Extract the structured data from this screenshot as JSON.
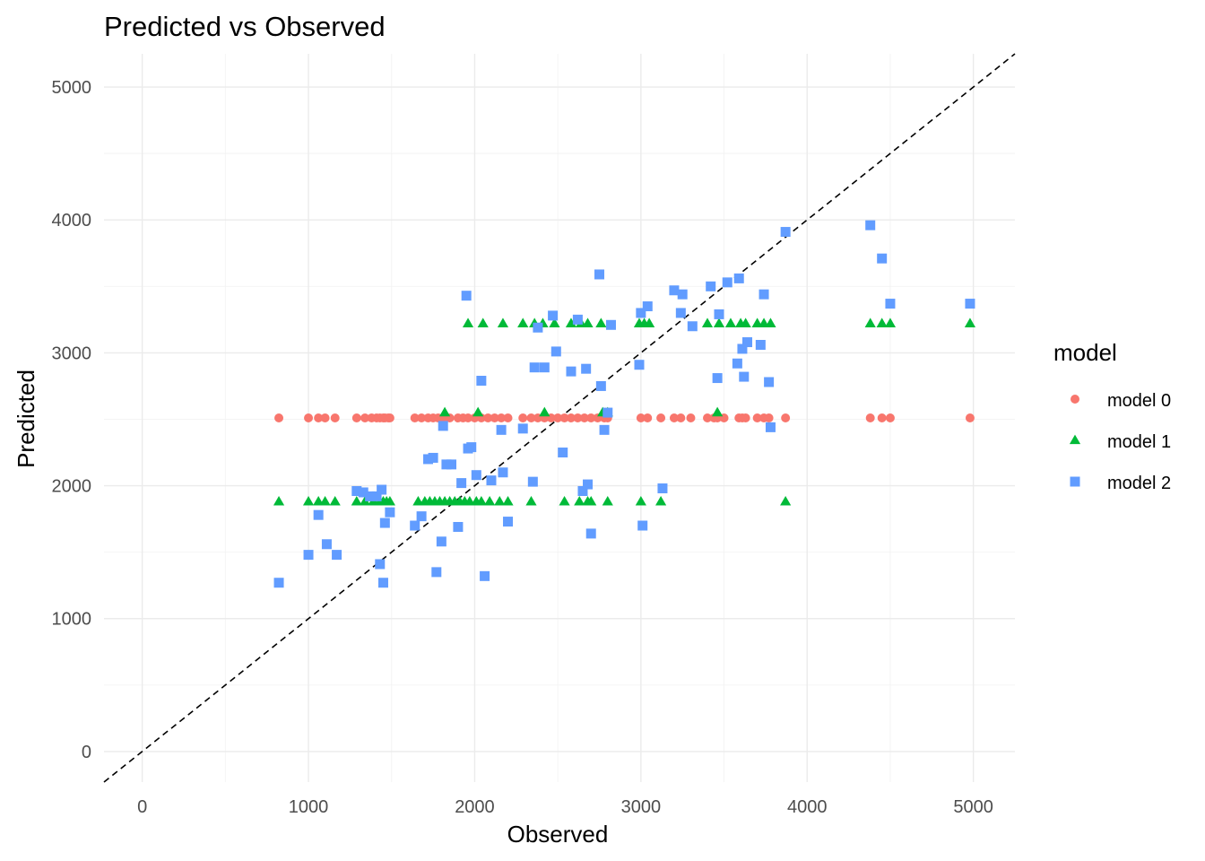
{
  "chart_data": {
    "type": "scatter",
    "title": "Predicted vs Observed",
    "xlabel": "Observed",
    "ylabel": "Predicted",
    "xlim": [
      -230,
      5250
    ],
    "ylim": [
      -230,
      5250
    ],
    "xticks": [
      0,
      1000,
      2000,
      3000,
      4000,
      5000
    ],
    "yticks": [
      0,
      1000,
      2000,
      3000,
      4000,
      5000
    ],
    "grid": true,
    "reference_line": {
      "type": "identity",
      "style": "dashed",
      "color": "#000000"
    },
    "legend": {
      "title": "model",
      "position": "right"
    },
    "series": [
      {
        "name": "model 0",
        "shape": "circle",
        "color": "#F8766D",
        "x": [
          822,
          1000,
          1060,
          1100,
          1160,
          1290,
          1340,
          1380,
          1410,
          1430,
          1450,
          1460,
          1480,
          1490,
          1640,
          1680,
          1720,
          1750,
          1780,
          1810,
          1850,
          1900,
          1930,
          1960,
          2000,
          2040,
          2080,
          2120,
          2160,
          2200,
          2290,
          2340,
          2380,
          2420,
          2460,
          2500,
          2540,
          2580,
          2620,
          2660,
          2700,
          2740,
          2780,
          2800,
          3000,
          3040,
          3120,
          3200,
          3240,
          3300,
          3400,
          3440,
          3460,
          3500,
          3590,
          3610,
          3630,
          3700,
          3740,
          3770,
          3870,
          4380,
          4450,
          4500,
          4980
        ],
        "y": [
          2510,
          2510,
          2510,
          2510,
          2510,
          2510,
          2510,
          2510,
          2510,
          2510,
          2510,
          2510,
          2510,
          2510,
          2510,
          2510,
          2510,
          2510,
          2510,
          2510,
          2510,
          2510,
          2510,
          2510,
          2510,
          2510,
          2510,
          2510,
          2510,
          2510,
          2510,
          2510,
          2510,
          2510,
          2510,
          2510,
          2510,
          2510,
          2510,
          2510,
          2510,
          2510,
          2510,
          2510,
          2510,
          2510,
          2510,
          2510,
          2510,
          2510,
          2510,
          2510,
          2510,
          2510,
          2510,
          2510,
          2510,
          2510,
          2510,
          2510,
          2510,
          2510,
          2510,
          2510,
          2510
        ]
      },
      {
        "name": "model 1",
        "shape": "triangle",
        "color": "#00BA38",
        "x": [
          822,
          1000,
          1060,
          1100,
          1160,
          1290,
          1340,
          1390,
          1430,
          1450,
          1470,
          1490,
          1660,
          1700,
          1730,
          1760,
          1790,
          1820,
          1850,
          1880,
          1910,
          1940,
          1970,
          2010,
          2040,
          2090,
          2150,
          2200,
          2340,
          2540,
          2630,
          2680,
          2700,
          2800,
          3000,
          3120,
          3870,
          1820,
          2020,
          2420,
          2770,
          2800,
          3460,
          1960,
          2050,
          2170,
          2290,
          2360,
          2410,
          2480,
          2580,
          2640,
          2680,
          2760,
          2990,
          3020,
          3050,
          3400,
          3470,
          3540,
          3600,
          3630,
          3700,
          3740,
          3780,
          4380,
          4450,
          4500,
          4980
        ],
        "y": [
          1880,
          1880,
          1880,
          1880,
          1880,
          1880,
          1880,
          1880,
          1880,
          1880,
          1880,
          1880,
          1880,
          1880,
          1880,
          1880,
          1880,
          1880,
          1880,
          1880,
          1880,
          1880,
          1880,
          1880,
          1880,
          1880,
          1880,
          1880,
          1880,
          1880,
          1880,
          1880,
          1880,
          1880,
          1880,
          1880,
          1880,
          2550,
          2550,
          2550,
          2550,
          2550,
          2550,
          3220,
          3220,
          3220,
          3220,
          3220,
          3220,
          3220,
          3220,
          3220,
          3220,
          3220,
          3220,
          3220,
          3220,
          3220,
          3220,
          3220,
          3220,
          3220,
          3220,
          3220,
          3220,
          3220,
          3220,
          3220,
          3220
        ]
      },
      {
        "name": "model 2",
        "shape": "square",
        "color": "#619CFF",
        "x": [
          822,
          1000,
          1060,
          1110,
          1170,
          1290,
          1330,
          1370,
          1410,
          1430,
          1440,
          1450,
          1460,
          1490,
          1640,
          1680,
          1720,
          1750,
          1770,
          1800,
          1810,
          1830,
          1860,
          1900,
          1920,
          1950,
          1960,
          1980,
          2010,
          2040,
          2060,
          2100,
          2160,
          2170,
          2200,
          2290,
          2350,
          2360,
          2380,
          2420,
          2470,
          2490,
          2530,
          2580,
          2620,
          2650,
          2670,
          2680,
          2700,
          2750,
          2760,
          2780,
          2800,
          2820,
          2990,
          3000,
          3010,
          3040,
          3130,
          3200,
          3240,
          3250,
          3310,
          3420,
          3460,
          3470,
          3520,
          3580,
          3590,
          3610,
          3620,
          3640,
          3720,
          3740,
          3770,
          3780,
          3870,
          4380,
          4450,
          4500,
          4980
        ],
        "y": [
          1270,
          1480,
          1780,
          1560,
          1480,
          1960,
          1950,
          1920,
          1920,
          1410,
          1970,
          1270,
          1720,
          1800,
          1700,
          1770,
          2200,
          2210,
          1350,
          1580,
          2450,
          2160,
          2160,
          1690,
          2020,
          3430,
          2280,
          2290,
          2080,
          2790,
          1320,
          2040,
          2420,
          2100,
          1730,
          2430,
          2030,
          2890,
          3190,
          2890,
          3280,
          3010,
          2250,
          2860,
          3250,
          1960,
          2880,
          2010,
          1640,
          3590,
          2750,
          2420,
          2550,
          3210,
          2910,
          3300,
          1700,
          3350,
          1980,
          3470,
          3300,
          3440,
          3200,
          3500,
          2810,
          3290,
          3530,
          2920,
          3560,
          3030,
          2820,
          3080,
          3060,
          3440,
          2780,
          2440,
          3910,
          3960,
          3710,
          3370,
          3370
        ]
      }
    ]
  }
}
